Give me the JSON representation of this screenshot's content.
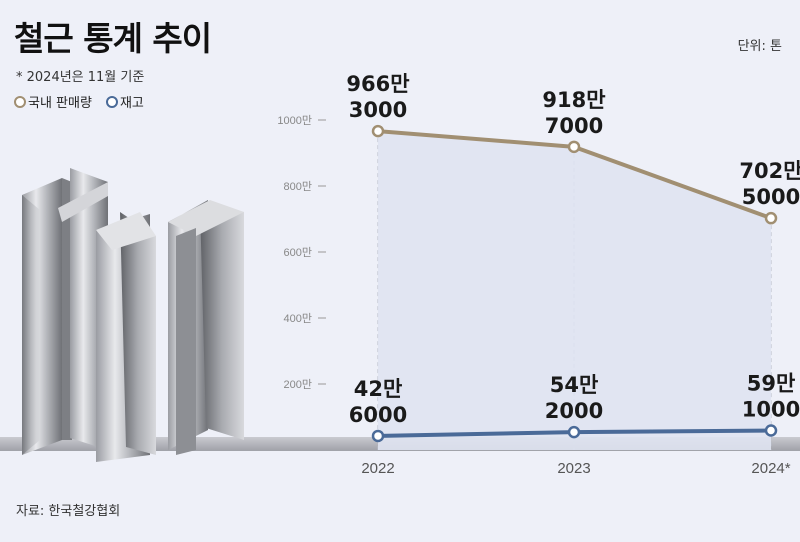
{
  "title": "철근 통계 추이",
  "unit_note": "단위: 톤",
  "footnote": "* 2024년은 11월 기준",
  "source": "자료: 한국철강협회",
  "legend": [
    {
      "label": "국내 판매량",
      "color": "#a18f72"
    },
    {
      "label": "재고",
      "color": "#4a6a98"
    }
  ],
  "chart_data": {
    "type": "line",
    "title": "철근 통계 추이",
    "categories": [
      "2022",
      "2023",
      "2024*"
    ],
    "ylim": [
      0,
      1000
    ],
    "yticks": [
      "200만",
      "400만",
      "600만",
      "800만",
      "1000만"
    ],
    "grid": false,
    "legend_position": "top-left",
    "series": [
      {
        "name": "국내 판매량",
        "color": "#a18f72",
        "values": [
          9663000,
          9187000,
          7025000
        ],
        "labels": [
          [
            "966만",
            "3000"
          ],
          [
            "918만",
            "7000"
          ],
          [
            "702만",
            "5000"
          ]
        ]
      },
      {
        "name": "재고",
        "color": "#4a6a98",
        "values": [
          426000,
          542000,
          591000
        ],
        "labels": [
          [
            "42만",
            "6000"
          ],
          [
            "54만",
            "2000"
          ],
          [
            "59만",
            "1000"
          ]
        ]
      }
    ]
  }
}
